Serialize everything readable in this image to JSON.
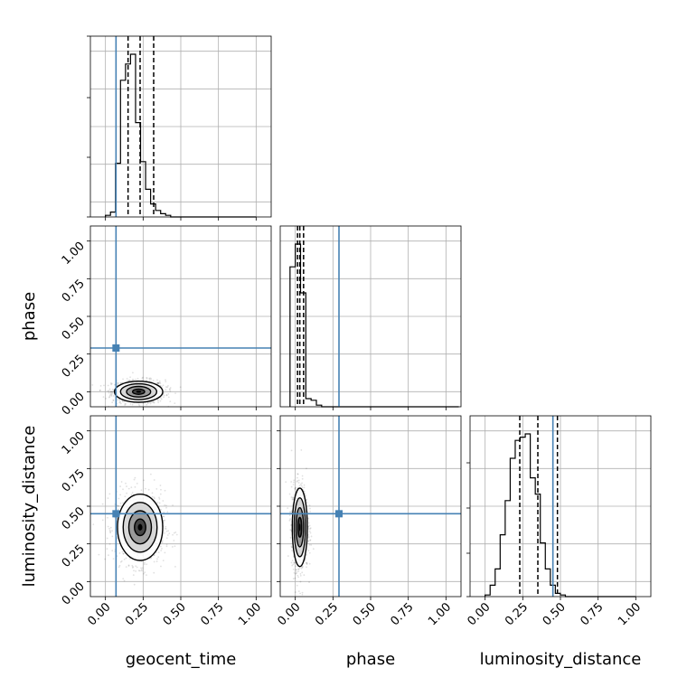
{
  "chart_data": {
    "type": "corner",
    "parameters": [
      "geocent_time",
      "phase",
      "luminosity_distance"
    ],
    "axis_range": [
      -0.1,
      1.1
    ],
    "tick_values": [
      0.0,
      0.25,
      0.5,
      0.75,
      1.0
    ],
    "tick_labels": [
      "0.00",
      "0.25",
      "0.50",
      "0.75",
      "1.00"
    ],
    "grid": true,
    "truth_color": "#4682b4",
    "truths": {
      "geocent_time": 0.07,
      "phase": 0.29,
      "luminosity_distance": 0.45
    },
    "histograms": [
      {
        "param": "geocent_time",
        "bin_start": 0.0,
        "bin_width": 0.0333,
        "counts": [
          0.01,
          0.03,
          0.33,
          0.84,
          0.94,
          1.0,
          0.58,
          0.34,
          0.17,
          0.08,
          0.04,
          0.02,
          0.01,
          0,
          0,
          0,
          0,
          0,
          0,
          0,
          0,
          0,
          0,
          0,
          0,
          0,
          0,
          0,
          0,
          0
        ],
        "quantiles": [
          0.15,
          0.23,
          0.32
        ]
      },
      {
        "param": "phase",
        "bin_start": -0.035,
        "bin_width": 0.035,
        "counts": [
          0.86,
          1.0,
          0.7,
          0.05,
          0.04,
          0.01,
          0,
          0,
          0,
          0,
          0,
          0,
          0,
          0,
          0,
          0,
          0,
          0,
          0,
          0,
          0,
          0,
          0,
          0,
          0,
          0,
          0,
          0,
          0,
          0,
          0,
          0
        ],
        "quantiles": [
          0.015,
          0.03,
          0.055
        ]
      },
      {
        "param": "luminosity_distance",
        "bin_start": 0.0,
        "bin_width": 0.0333,
        "counts": [
          0.01,
          0.07,
          0.17,
          0.38,
          0.59,
          0.85,
          0.96,
          0.98,
          1.0,
          0.73,
          0.63,
          0.33,
          0.17,
          0.07,
          0.02,
          0.01,
          0,
          0,
          0,
          0,
          0,
          0,
          0,
          0,
          0,
          0,
          0,
          0,
          0,
          0
        ],
        "quantiles": [
          0.23,
          0.35,
          0.48
        ]
      }
    ],
    "contours": [
      {
        "x": "geocent_time",
        "y": "phase",
        "cx": 0.22,
        "cy": 0.0,
        "sx": 0.08,
        "sy": 0.035
      },
      {
        "x": "geocent_time",
        "y": "luminosity_distance",
        "cx": 0.23,
        "cy": 0.36,
        "sx": 0.075,
        "sy": 0.11
      },
      {
        "x": "phase",
        "y": "luminosity_distance",
        "cx": 0.03,
        "cy": 0.36,
        "sx": 0.025,
        "sy": 0.13
      }
    ]
  }
}
